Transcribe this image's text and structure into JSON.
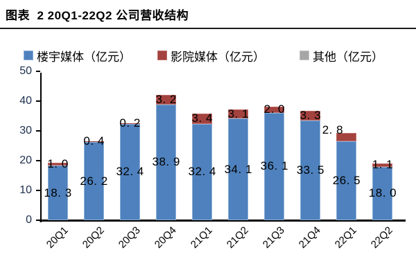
{
  "title": "图表  2 20Q1-22Q2 公司营收结构",
  "chart_data": {
    "type": "bar",
    "stacked": true,
    "title": "20Q1-22Q2 公司营收结构",
    "categories": [
      "20Q1",
      "20Q2",
      "20Q3",
      "20Q4",
      "21Q1",
      "21Q2",
      "21Q3",
      "21Q4",
      "22Q1",
      "22Q2"
    ],
    "series": [
      {
        "name": "楼宇媒体（亿元）",
        "color": "#4E81BD",
        "border_color": "#8DB0D8",
        "values": [
          18.3,
          26.2,
          32.4,
          38.9,
          32.4,
          34.1,
          36.1,
          33.5,
          26.5,
          18.0
        ]
      },
      {
        "name": "影院媒体（亿元）",
        "color": "#A3423E",
        "border_color": "#BE6E69",
        "values": [
          1.0,
          0.4,
          0.2,
          3.2,
          3.4,
          3.1,
          2.0,
          3.3,
          2.8,
          1.1
        ]
      },
      {
        "name": "其他（亿元）",
        "color": "#A6A6A6",
        "border_color": "#C4C4C4",
        "values": [
          0,
          0,
          0,
          0,
          0,
          0,
          0,
          0,
          0,
          0
        ]
      }
    ],
    "xlabel": "",
    "ylabel": "",
    "ylim": [
      0,
      50
    ],
    "yticks": [
      0,
      10,
      20,
      30,
      40,
      50
    ],
    "gridlines": false,
    "legend_position": "top",
    "data_labels": true,
    "label_offsets": {
      "1": {
        "8": [
          -20,
          -10
        ]
      }
    }
  }
}
